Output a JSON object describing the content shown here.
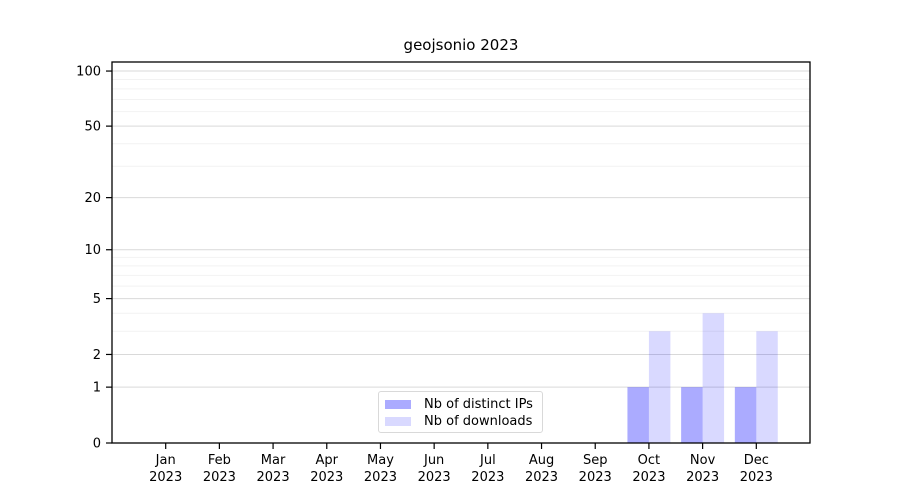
{
  "chart_data": {
    "type": "bar",
    "title": "geojsonio 2023",
    "x_months": [
      "Jan",
      "Feb",
      "Mar",
      "Apr",
      "May",
      "Jun",
      "Jul",
      "Aug",
      "Sep",
      "Oct",
      "Nov",
      "Dec"
    ],
    "x_year": "2023",
    "series": [
      {
        "name": "Nb of distinct IPs",
        "color": "rgba(0,0,255,0.33)",
        "values": [
          0,
          0,
          0,
          0,
          0,
          0,
          0,
          0,
          0,
          1,
          1,
          1
        ]
      },
      {
        "name": "Nb of downloads",
        "color": "rgba(0,0,255,0.15)",
        "values": [
          0,
          0,
          0,
          0,
          0,
          0,
          0,
          0,
          0,
          3,
          4,
          3
        ]
      }
    ],
    "y_scale": "log1p",
    "y_axis": {
      "major_ticks": [
        100,
        50,
        20,
        10,
        5,
        2,
        1,
        0
      ],
      "minor_gridlines": [
        3,
        4,
        6,
        7,
        8,
        9,
        30,
        40,
        60,
        70,
        80,
        90
      ],
      "max_value": 112
    },
    "legend_position": "bottom-center",
    "grid": true
  },
  "colors": {
    "major_grid": "#d9d9d9",
    "minor_grid": "#f2f2f2",
    "spine": "#000000",
    "tick": "#000000",
    "text": "#000000",
    "background": "#ffffff"
  }
}
